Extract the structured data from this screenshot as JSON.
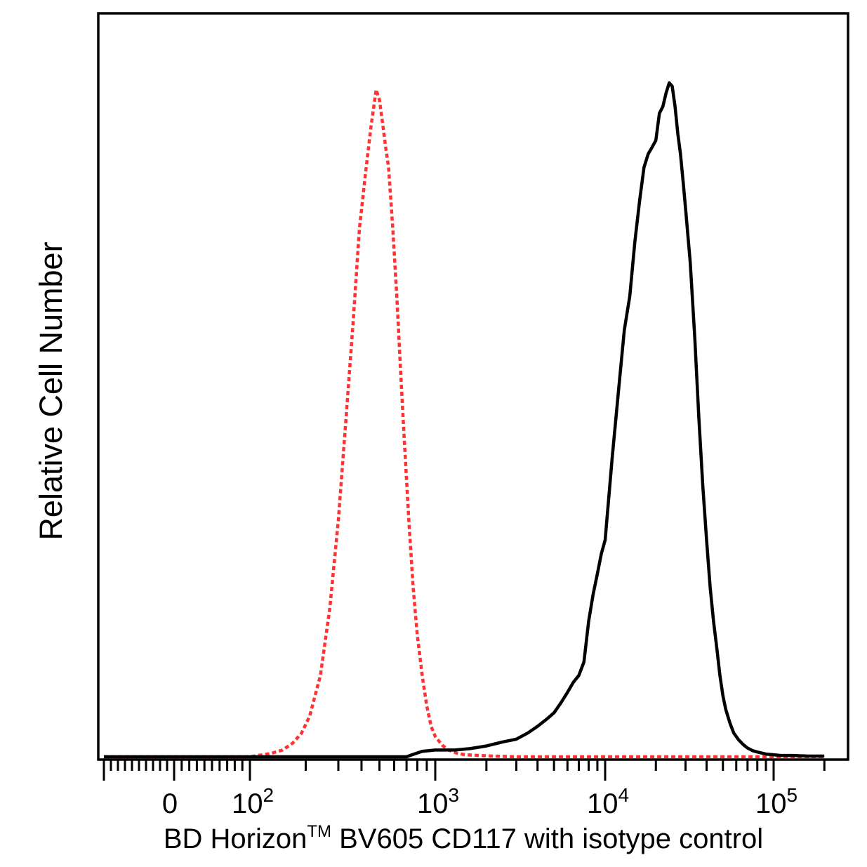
{
  "chart_data": {
    "type": "line",
    "xlabel": "BD Horizon",
    "xlabel_tm": "TM",
    "xlabel_rest": " BV605 CD117 with isotype control",
    "ylabel": "Relative Cell Number",
    "xscale": "biexponential",
    "grid": false,
    "x_tick_labels": [
      {
        "value": 0,
        "base": "0",
        "exp": ""
      },
      {
        "value": 100,
        "base": "10",
        "exp": "2"
      },
      {
        "value": 1000,
        "base": "10",
        "exp": "3"
      },
      {
        "value": 10000,
        "base": "10",
        "exp": "4"
      },
      {
        "value": 100000,
        "base": "10",
        "exp": "5"
      }
    ],
    "series": [
      {
        "style": "dotted",
        "color": "#ff3333",
        "x": [
          -100,
          100,
          130,
          150,
          170,
          190,
          210,
          240,
          270,
          300,
          330,
          360,
          390,
          420,
          450,
          480,
          500,
          520,
          540,
          560,
          590,
          620,
          650,
          680,
          720,
          760,
          800,
          850,
          900,
          950,
          1000,
          1100,
          1200,
          1350,
          1500,
          1800,
          2200,
          3000,
          5000,
          10000,
          50000,
          200000
        ],
        "y": [
          0.0,
          0.0,
          0.005,
          0.01,
          0.02,
          0.035,
          0.06,
          0.12,
          0.22,
          0.35,
          0.5,
          0.64,
          0.78,
          0.86,
          0.93,
          0.985,
          0.97,
          0.935,
          0.9,
          0.87,
          0.78,
          0.68,
          0.57,
          0.47,
          0.35,
          0.25,
          0.18,
          0.12,
          0.075,
          0.045,
          0.03,
          0.017,
          0.01,
          0.005,
          0.003,
          0.002,
          0.001,
          0.0,
          0.0,
          0.0,
          0.0,
          0.0
        ]
      },
      {
        "style": "solid",
        "color": "#000000",
        "x": [
          -100,
          100,
          500,
          700,
          750,
          850,
          1000,
          1300,
          1600,
          2000,
          2500,
          3000,
          3500,
          4000,
          4500,
          5000,
          5500,
          6000,
          6500,
          7000,
          7500,
          8000,
          8500,
          9000,
          9500,
          10000,
          11000,
          12000,
          13000,
          14000,
          15000,
          16000,
          17000,
          18000,
          19000,
          20000,
          21000,
          22000,
          23000,
          24000,
          25000,
          26000,
          27000,
          28000,
          29000,
          30000,
          32000,
          34000,
          36000,
          38000,
          40000,
          42000,
          44000,
          46000,
          48000,
          50000,
          52000,
          55000,
          58000,
          62000,
          66000,
          70000,
          75000,
          80000,
          90000,
          100000,
          110000,
          130000,
          160000,
          200000
        ],
        "y": [
          0.0,
          0.0,
          0.0,
          0.0,
          0.003,
          0.008,
          0.01,
          0.01,
          0.012,
          0.016,
          0.022,
          0.026,
          0.035,
          0.045,
          0.055,
          0.065,
          0.08,
          0.095,
          0.11,
          0.12,
          0.14,
          0.2,
          0.24,
          0.27,
          0.3,
          0.32,
          0.44,
          0.54,
          0.63,
          0.68,
          0.76,
          0.82,
          0.87,
          0.89,
          0.9,
          0.91,
          0.95,
          0.96,
          0.98,
          0.995,
          0.99,
          0.96,
          0.92,
          0.89,
          0.85,
          0.81,
          0.73,
          0.62,
          0.5,
          0.4,
          0.32,
          0.25,
          0.2,
          0.16,
          0.12,
          0.09,
          0.07,
          0.05,
          0.035,
          0.025,
          0.018,
          0.013,
          0.009,
          0.007,
          0.004,
          0.003,
          0.002,
          0.002,
          0.001,
          0.001
        ]
      }
    ]
  }
}
